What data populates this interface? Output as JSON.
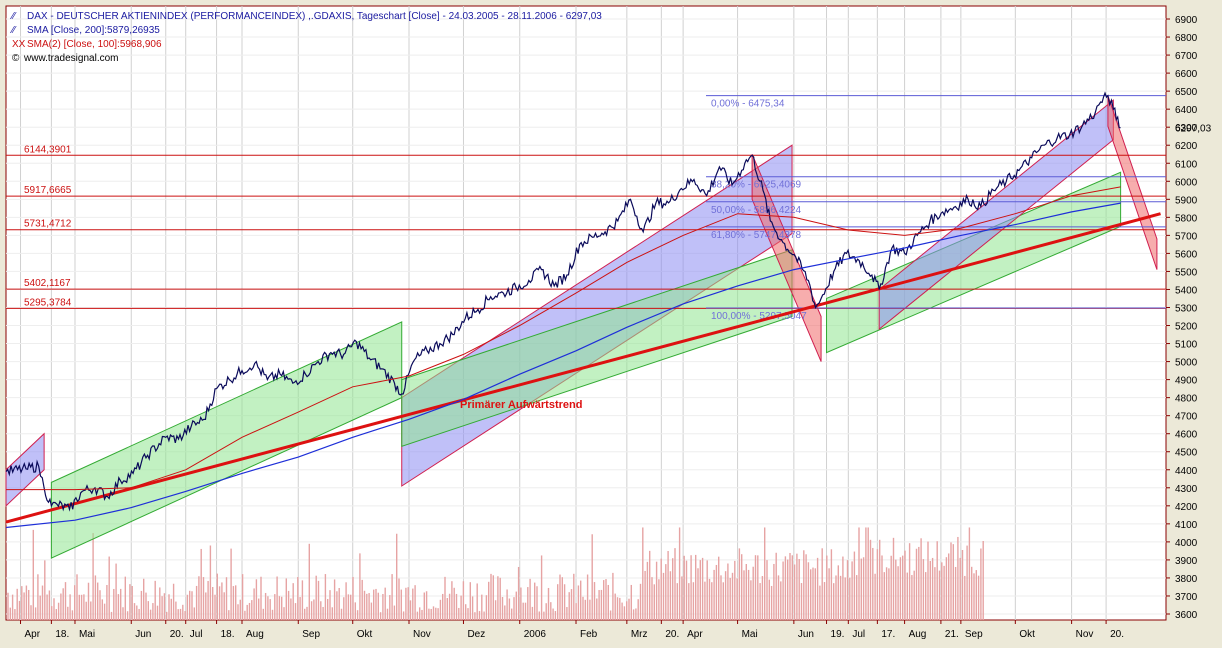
{
  "legend": {
    "line1": "DAX  - DEUTSCHER AKTIENINDEX (PERFORMANCEINDEX) ,.GDAXIS, Tageschart [Close] - 24.03.2005 - 28.11.2006 - 6297,03",
    "line2": "SMA [Close, 200]:5879,26935",
    "line3": "SMA(2) [Close, 100]:5968,906",
    "line4": "www.tradesignal.com",
    "icon1": "line-chart-icon",
    "icon2": "line-chart-icon",
    "icon3": "xx-icon",
    "icon4": "copyright-icon"
  },
  "annotations": {
    "trend_label": "Primärer Aufwärtstrend"
  },
  "colors": {
    "background": "#ece9d8",
    "plot_bg": "#ffffff",
    "price": "#0a0a5a",
    "sma200": "#1e2fd8",
    "sma100": "#cc1111",
    "trend": "#dd1111",
    "level_line": "#cc1111",
    "fib_line": "#5c5cd6",
    "channel_blue": "#8c8cf2",
    "channel_green": "#8fe68f",
    "channel_red": "#f06a6a",
    "volume": "#e6a3a3",
    "axis": "#8a0000",
    "grid": "#d0d0d0"
  },
  "chart_data": {
    "type": "line",
    "title": "DAX  - DEUTSCHER AKTIENINDEX (PERFORMANCEINDEX) ,.GDAXIS, Tageschart [Close] - 24.03.2005 - 28.11.2006 - 6297,03",
    "ylim": [
      3600,
      6950
    ],
    "y_ticks": [
      6900,
      6800,
      6700,
      6600,
      6500,
      6400,
      6300,
      6200,
      6100,
      6000,
      5900,
      5800,
      5700,
      5600,
      5500,
      5400,
      5300,
      5200,
      5100,
      5000,
      4900,
      4800,
      4700,
      4600,
      4500,
      4400,
      4300,
      4200,
      4100,
      4000,
      3900,
      3800,
      3700,
      3600
    ],
    "last_price_label": "6297,03",
    "last_price": 6297.03,
    "x_ticks": [
      {
        "label": "Apr",
        "date": "2005-04-01"
      },
      {
        "label": "18.",
        "date": "2005-04-18"
      },
      {
        "label": "Mai",
        "date": "2005-05-01"
      },
      {
        "label": "Jun",
        "date": "2005-06-01"
      },
      {
        "label": "20.",
        "date": "2005-06-20"
      },
      {
        "label": "Jul",
        "date": "2005-07-01"
      },
      {
        "label": "18.",
        "date": "2005-07-18"
      },
      {
        "label": "Aug",
        "date": "2005-08-01"
      },
      {
        "label": "Sep",
        "date": "2005-09-01"
      },
      {
        "label": "Okt",
        "date": "2005-10-01"
      },
      {
        "label": "Nov",
        "date": "2005-11-01"
      },
      {
        "label": "Dez",
        "date": "2005-12-01"
      },
      {
        "label": "2006",
        "date": "2006-01-01"
      },
      {
        "label": "Feb",
        "date": "2006-02-01"
      },
      {
        "label": "Mrz",
        "date": "2006-03-01"
      },
      {
        "label": "20.",
        "date": "2006-03-20"
      },
      {
        "label": "Apr",
        "date": "2006-04-01"
      },
      {
        "label": "Mai",
        "date": "2006-05-01"
      },
      {
        "label": "Jun",
        "date": "2006-06-01"
      },
      {
        "label": "19.",
        "date": "2006-06-19"
      },
      {
        "label": "Jul",
        "date": "2006-07-01"
      },
      {
        "label": "17.",
        "date": "2006-07-17"
      },
      {
        "label": "Aug",
        "date": "2006-08-01"
      },
      {
        "label": "21.",
        "date": "2006-08-21"
      },
      {
        "label": "Sep",
        "date": "2006-09-01"
      },
      {
        "label": "Okt",
        "date": "2006-10-01"
      },
      {
        "label": "Nov",
        "date": "2006-11-01"
      },
      {
        "label": "20.",
        "date": "2006-11-20"
      }
    ],
    "levels": [
      {
        "label": "6144,3901",
        "value": 6144.3901
      },
      {
        "label": "5917,6665",
        "value": 5917.6665
      },
      {
        "label": "5731,4712",
        "value": 5731.4712
      },
      {
        "label": "5402,1167",
        "value": 5402.1167
      },
      {
        "label": "5295,3784",
        "value": 5295.3784
      }
    ],
    "fibonacci": [
      {
        "label": "0,00% - 6475,34",
        "value": 6475.34
      },
      {
        "label": "38,20% - 6025,4069",
        "value": 6025.4069
      },
      {
        "label": "50,00% - 5886,4224",
        "value": 5886.4224
      },
      {
        "label": "61,80% - 5747,4378",
        "value": 5747.4378
      },
      {
        "label": "100,00% - 5297,5047",
        "value": 5297.5047
      }
    ],
    "series": [
      {
        "name": "DAX",
        "points": [
          [
            "2005-03-24",
            4390
          ],
          [
            "2005-04-04",
            4405
          ],
          [
            "2005-04-11",
            4420
          ],
          [
            "2005-04-14",
            4300
          ],
          [
            "2005-04-18",
            4200
          ],
          [
            "2005-04-21",
            4210
          ],
          [
            "2005-04-28",
            4180
          ],
          [
            "2005-05-05",
            4280
          ],
          [
            "2005-05-12",
            4300
          ],
          [
            "2005-05-19",
            4250
          ],
          [
            "2005-05-26",
            4340
          ],
          [
            "2005-06-02",
            4380
          ],
          [
            "2005-06-10",
            4480
          ],
          [
            "2005-06-20",
            4580
          ],
          [
            "2005-06-27",
            4570
          ],
          [
            "2005-07-04",
            4640
          ],
          [
            "2005-07-11",
            4680
          ],
          [
            "2005-07-18",
            4850
          ],
          [
            "2005-07-25",
            4900
          ],
          [
            "2005-08-01",
            4950
          ],
          [
            "2005-08-08",
            4990
          ],
          [
            "2005-08-15",
            4900
          ],
          [
            "2005-08-22",
            4930
          ],
          [
            "2005-08-29",
            4880
          ],
          [
            "2005-09-05",
            4930
          ],
          [
            "2005-09-12",
            5000
          ],
          [
            "2005-09-19",
            5050
          ],
          [
            "2005-09-26",
            5040
          ],
          [
            "2005-10-03",
            5110
          ],
          [
            "2005-10-10",
            5020
          ],
          [
            "2005-10-17",
            4960
          ],
          [
            "2005-10-24",
            4880
          ],
          [
            "2005-10-28",
            4820
          ],
          [
            "2005-11-04",
            5010
          ],
          [
            "2005-11-11",
            5060
          ],
          [
            "2005-11-18",
            5100
          ],
          [
            "2005-11-25",
            5150
          ],
          [
            "2005-12-02",
            5240
          ],
          [
            "2005-12-09",
            5290
          ],
          [
            "2005-12-16",
            5360
          ],
          [
            "2005-12-23",
            5380
          ],
          [
            "2005-12-30",
            5410
          ],
          [
            "2006-01-06",
            5450
          ],
          [
            "2006-01-13",
            5510
          ],
          [
            "2006-01-20",
            5420
          ],
          [
            "2006-01-27",
            5480
          ],
          [
            "2006-02-03",
            5650
          ],
          [
            "2006-02-10",
            5690
          ],
          [
            "2006-02-17",
            5720
          ],
          [
            "2006-02-24",
            5780
          ],
          [
            "2006-03-03",
            5900
          ],
          [
            "2006-03-10",
            5720
          ],
          [
            "2006-03-17",
            5880
          ],
          [
            "2006-03-24",
            5880
          ],
          [
            "2006-03-31",
            5960
          ],
          [
            "2006-04-07",
            6010
          ],
          [
            "2006-04-14",
            5920
          ],
          [
            "2006-04-21",
            6080
          ],
          [
            "2006-04-28",
            5980
          ],
          [
            "2006-05-05",
            6100
          ],
          [
            "2006-05-09",
            6144
          ],
          [
            "2006-05-15",
            5950
          ],
          [
            "2006-05-19",
            5780
          ],
          [
            "2006-05-26",
            5660
          ],
          [
            "2006-06-02",
            5580
          ],
          [
            "2006-06-09",
            5450
          ],
          [
            "2006-06-13",
            5300
          ],
          [
            "2006-06-16",
            5350
          ],
          [
            "2006-06-23",
            5500
          ],
          [
            "2006-06-30",
            5600
          ],
          [
            "2006-07-07",
            5560
          ],
          [
            "2006-07-14",
            5480
          ],
          [
            "2006-07-18",
            5400
          ],
          [
            "2006-07-25",
            5630
          ],
          [
            "2006-08-01",
            5600
          ],
          [
            "2006-08-08",
            5700
          ],
          [
            "2006-08-15",
            5780
          ],
          [
            "2006-08-22",
            5830
          ],
          [
            "2006-08-29",
            5860
          ],
          [
            "2006-09-05",
            5900
          ],
          [
            "2006-09-12",
            5860
          ],
          [
            "2006-09-19",
            5950
          ],
          [
            "2006-09-26",
            6000
          ],
          [
            "2006-10-03",
            6060
          ],
          [
            "2006-10-10",
            6130
          ],
          [
            "2006-10-17",
            6200
          ],
          [
            "2006-10-24",
            6240
          ],
          [
            "2006-10-31",
            6260
          ],
          [
            "2006-11-07",
            6310
          ],
          [
            "2006-11-14",
            6380
          ],
          [
            "2006-11-17",
            6440
          ],
          [
            "2006-11-21",
            6475
          ],
          [
            "2006-11-24",
            6400
          ],
          [
            "2006-11-28",
            6297
          ]
        ]
      },
      {
        "name": "SMA [Close, 200]",
        "points": [
          [
            "2005-03-24",
            4080
          ],
          [
            "2005-05-01",
            4120
          ],
          [
            "2005-06-01",
            4190
          ],
          [
            "2005-07-01",
            4280
          ],
          [
            "2005-08-01",
            4380
          ],
          [
            "2005-09-01",
            4470
          ],
          [
            "2005-10-01",
            4580
          ],
          [
            "2005-11-01",
            4680
          ],
          [
            "2005-12-01",
            4790
          ],
          [
            "2006-01-01",
            4930
          ],
          [
            "2006-02-01",
            5060
          ],
          [
            "2006-03-01",
            5190
          ],
          [
            "2006-04-01",
            5320
          ],
          [
            "2006-05-01",
            5420
          ],
          [
            "2006-06-01",
            5510
          ],
          [
            "2006-07-01",
            5570
          ],
          [
            "2006-08-01",
            5630
          ],
          [
            "2006-09-01",
            5700
          ],
          [
            "2006-10-01",
            5760
          ],
          [
            "2006-11-01",
            5830
          ],
          [
            "2006-11-28",
            5879
          ]
        ]
      },
      {
        "name": "SMA(2) [Close, 100]",
        "points": [
          [
            "2005-03-24",
            4290
          ],
          [
            "2005-05-01",
            4290
          ],
          [
            "2005-06-01",
            4300
          ],
          [
            "2005-07-01",
            4400
          ],
          [
            "2005-08-01",
            4580
          ],
          [
            "2005-09-01",
            4720
          ],
          [
            "2005-10-01",
            4860
          ],
          [
            "2005-11-01",
            4920
          ],
          [
            "2005-12-01",
            5040
          ],
          [
            "2006-01-01",
            5200
          ],
          [
            "2006-02-01",
            5380
          ],
          [
            "2006-03-01",
            5550
          ],
          [
            "2006-04-01",
            5700
          ],
          [
            "2006-05-01",
            5820
          ],
          [
            "2006-06-01",
            5800
          ],
          [
            "2006-07-01",
            5730
          ],
          [
            "2006-08-01",
            5700
          ],
          [
            "2006-09-01",
            5740
          ],
          [
            "2006-10-01",
            5820
          ],
          [
            "2006-11-01",
            5920
          ],
          [
            "2006-11-28",
            5969
          ]
        ]
      }
    ],
    "trendline": {
      "name": "Primärer Aufwärtstrend",
      "from": [
        "2005-03-24",
        4110
      ],
      "to": [
        "2006-12-20",
        5820
      ]
    },
    "channels": [
      {
        "color": "blue",
        "from": [
          "2005-03-24",
          4400
        ],
        "to": [
          "2005-04-14",
          4600
        ],
        "width": 200
      },
      {
        "color": "green",
        "from": [
          "2005-04-18",
          4330
        ],
        "to": [
          "2005-10-28",
          5220
        ],
        "width": 420
      },
      {
        "color": "blue",
        "from": [
          "2005-10-28",
          4800
        ],
        "to": [
          "2006-05-31",
          6200
        ],
        "width": 490
      },
      {
        "color": "green",
        "from": [
          "2005-10-28",
          4900
        ],
        "to": [
          "2006-05-31",
          5620
        ],
        "width": 370
      },
      {
        "color": "red",
        "from": [
          "2006-05-09",
          6150
        ],
        "to": [
          "2006-06-16",
          5250
        ],
        "width": 250
      },
      {
        "color": "green",
        "from": [
          "2006-06-19",
          5350
        ],
        "to": [
          "2006-11-28",
          6050
        ],
        "width": 300
      },
      {
        "color": "blue",
        "from": [
          "2006-07-18",
          5400
        ],
        "to": [
          "2006-11-24",
          6450
        ],
        "width": 220
      },
      {
        "color": "red",
        "from": [
          "2006-11-21",
          6475
        ],
        "to": [
          "2006-12-18",
          5680
        ],
        "width": 170
      }
    ],
    "volume": {
      "ylim": [
        3600,
        4600
      ],
      "note": "volume histogram drawn in lower pane"
    },
    "grid": true,
    "legend_position": "top-left"
  }
}
